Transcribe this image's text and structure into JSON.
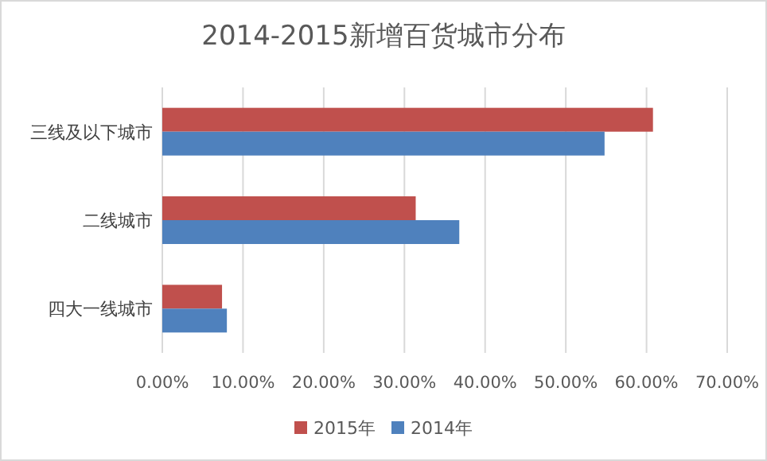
{
  "chart_data": {
    "type": "bar",
    "orientation": "horizontal",
    "title": "2014-2015新增百货城市分布",
    "categories": [
      "三线及以下城市",
      "二线城市",
      "四大一线城市"
    ],
    "series": [
      {
        "name": "2015年",
        "color": "#c0504d",
        "values": [
          60.8,
          31.4,
          7.4
        ]
      },
      {
        "name": "2014年",
        "color": "#4f81bd",
        "values": [
          54.8,
          36.8,
          8.0
        ]
      }
    ],
    "xlim": [
      0,
      70
    ],
    "xticks": [
      {
        "value": 0,
        "label": "0.00%"
      },
      {
        "value": 10,
        "label": "10.00%"
      },
      {
        "value": 20,
        "label": "20.00%"
      },
      {
        "value": 30,
        "label": "30.00%"
      },
      {
        "value": 40,
        "label": "40.00%"
      },
      {
        "value": 50,
        "label": "50.00%"
      },
      {
        "value": 60,
        "label": "60.00%"
      },
      {
        "value": 70,
        "label": "70.00%"
      }
    ],
    "grid": "x",
    "legend": "bottom"
  }
}
